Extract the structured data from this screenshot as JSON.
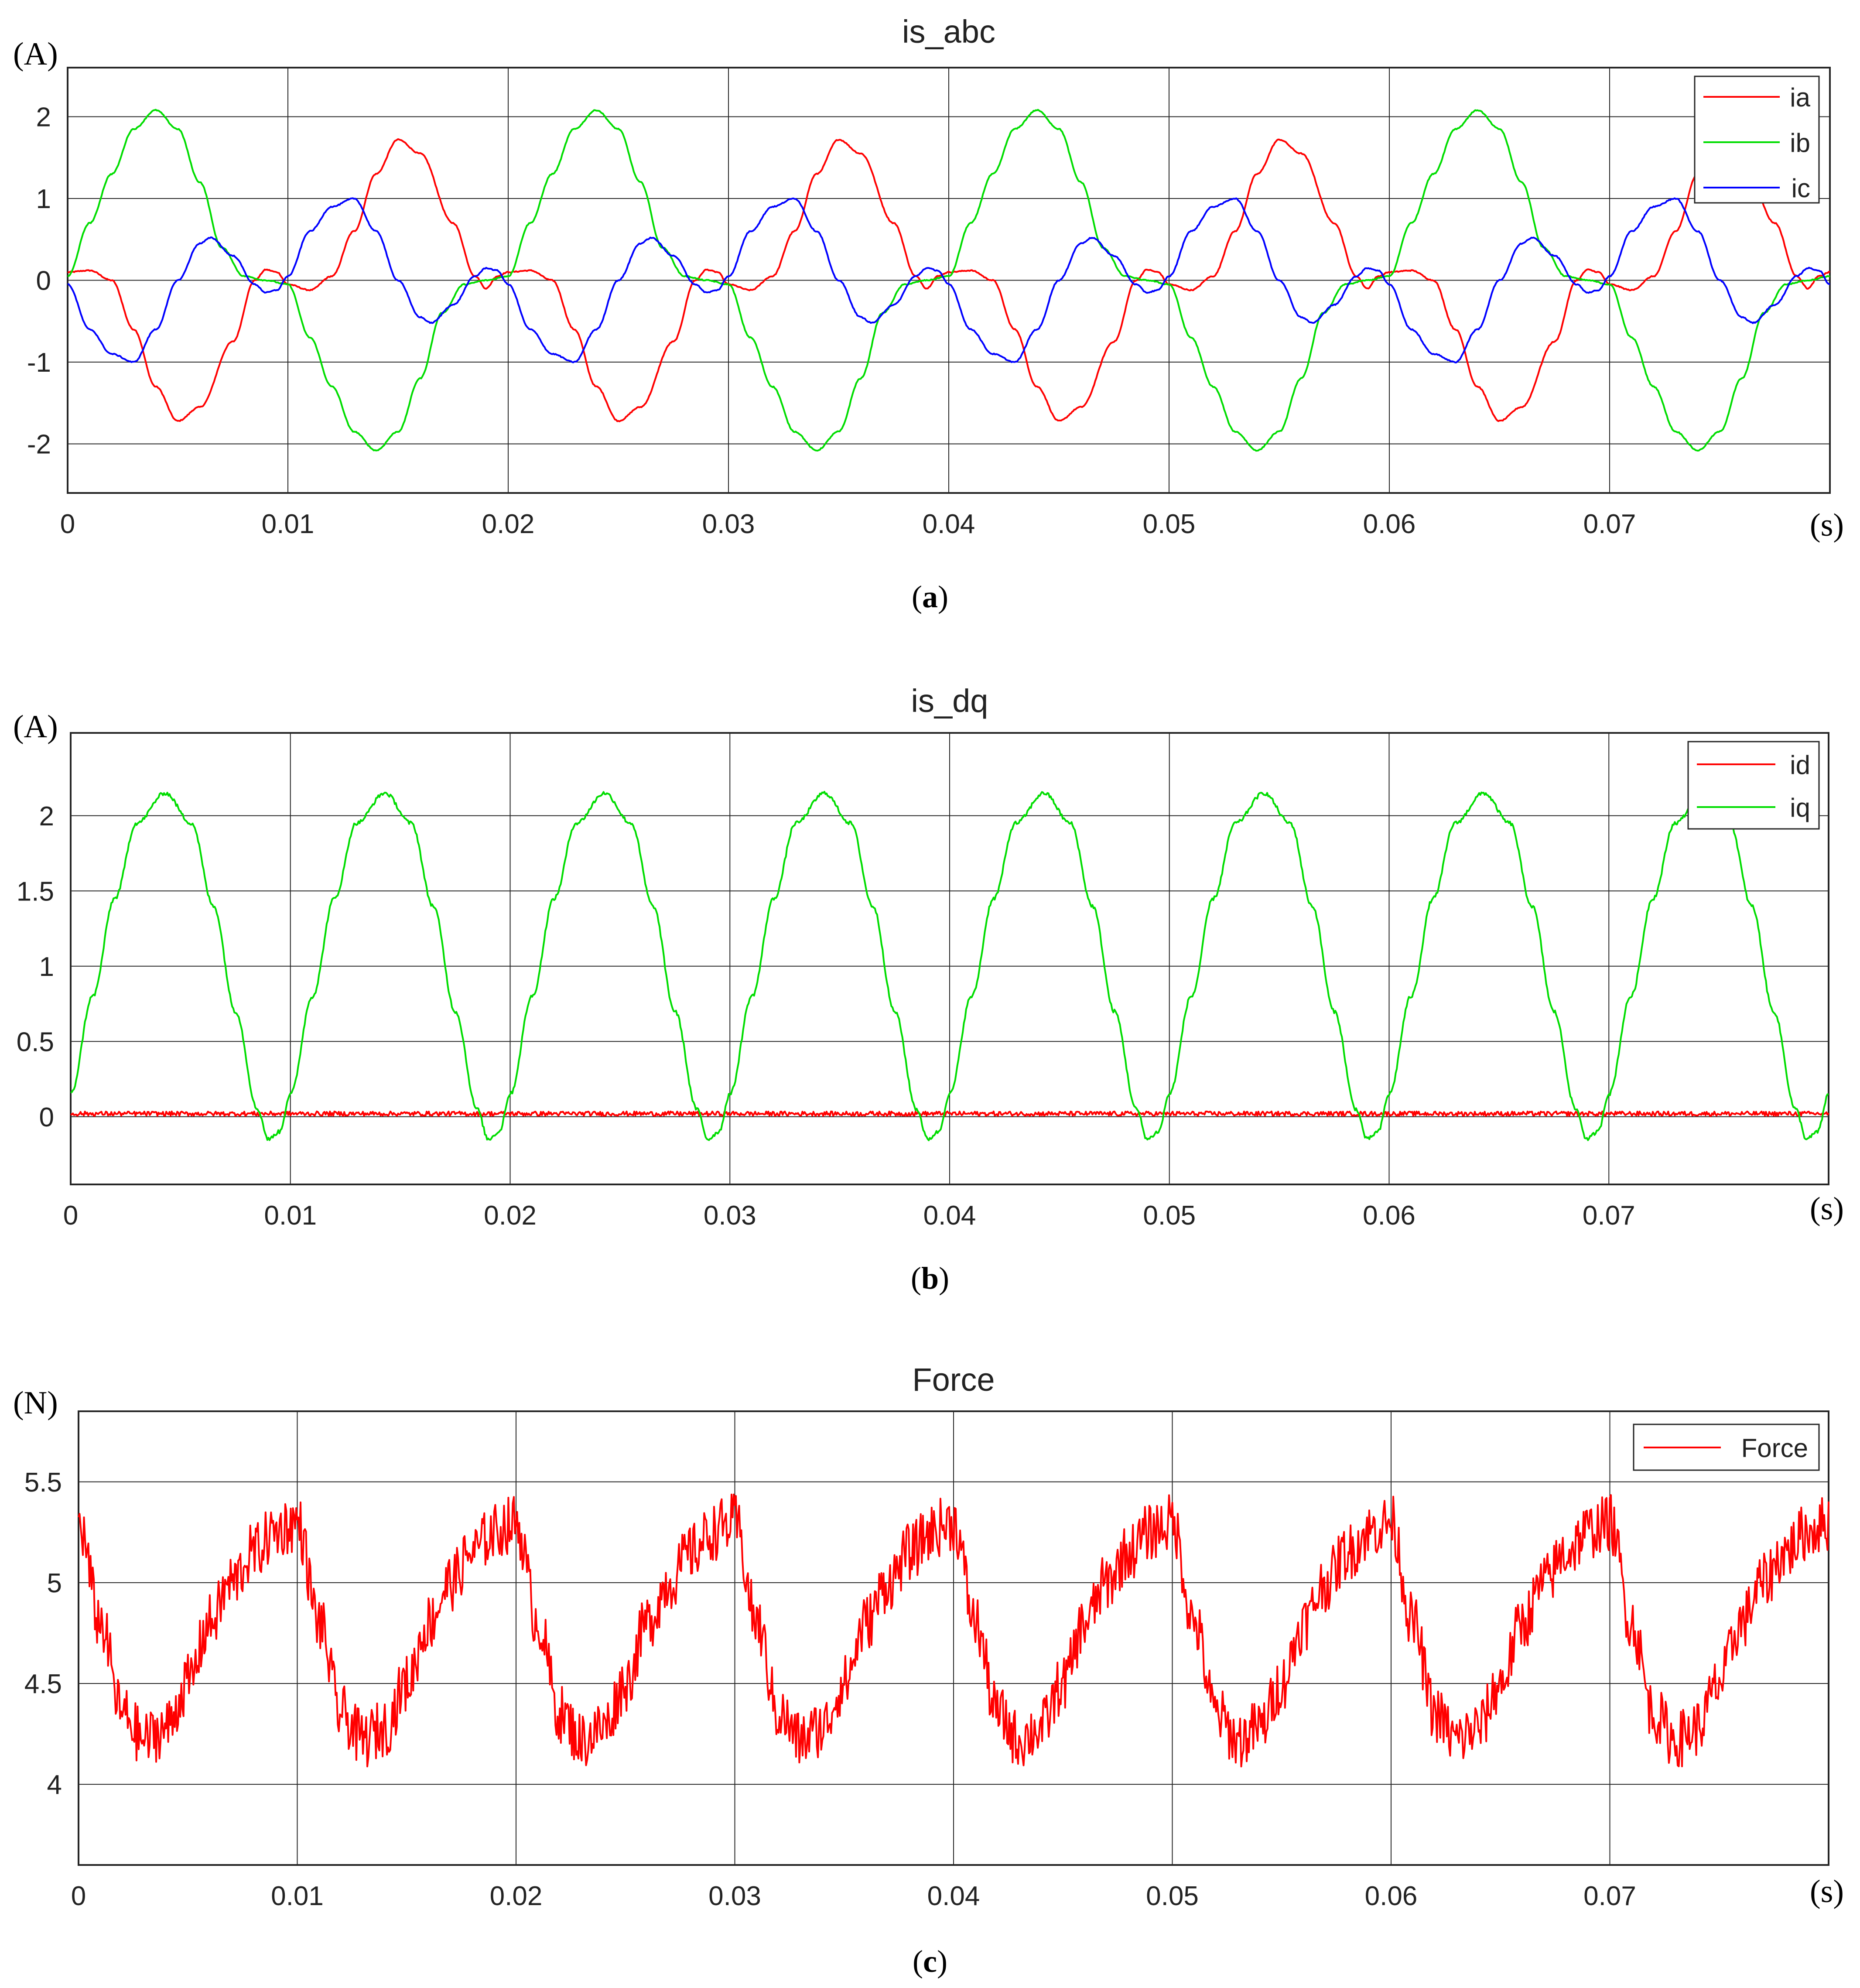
{
  "chart_data": [
    {
      "id": "a",
      "type": "line",
      "title": "is_abc",
      "y_unit": "(A)",
      "x_unit": "(s)",
      "caption_letter": "a",
      "xlim": [
        0,
        0.08
      ],
      "ylim": [
        -2.6,
        2.6
      ],
      "xticks": [
        0,
        0.01,
        0.02,
        0.03,
        0.04,
        0.05,
        0.06,
        0.07
      ],
      "xtick_labels": [
        "0",
        "0.01",
        "0.02",
        "0.03",
        "0.04",
        "0.05",
        "0.06",
        "0.07"
      ],
      "yticks": [
        -2,
        -1,
        0,
        1,
        2
      ],
      "ytick_labels": [
        "-2",
        "-1",
        "0",
        "1",
        "2"
      ],
      "grid": true,
      "legend_position": "top-right",
      "period": 0.02,
      "series": [
        {
          "name": "ia",
          "color": "#ff0000",
          "waveform": [
            [
              0,
              0.1
            ],
            [
              0.001,
              0.12
            ],
            [
              0.002,
              0.0
            ],
            [
              0.003,
              -0.6
            ],
            [
              0.004,
              -1.3
            ],
            [
              0.005,
              -1.72
            ],
            [
              0.006,
              -1.55
            ],
            [
              0.0075,
              -0.75
            ],
            [
              0.0085,
              0.0
            ],
            [
              0.009,
              0.13
            ],
            [
              0.0095,
              0.1
            ],
            [
              0.01,
              -0.05
            ],
            [
              0.011,
              -0.12
            ],
            [
              0.012,
              0.05
            ],
            [
              0.013,
              0.6
            ],
            [
              0.014,
              1.3
            ],
            [
              0.015,
              1.72
            ],
            [
              0.016,
              1.55
            ],
            [
              0.0175,
              0.7
            ],
            [
              0.0185,
              0.05
            ],
            [
              0.019,
              -0.1
            ],
            [
              0.0195,
              0.05
            ],
            [
              0.02,
              0.1
            ]
          ]
        },
        {
          "name": "ib",
          "color": "#00dd00",
          "waveform": [
            [
              0,
              0.05
            ],
            [
              0.001,
              0.7
            ],
            [
              0.002,
              1.3
            ],
            [
              0.003,
              1.85
            ],
            [
              0.004,
              2.08
            ],
            [
              0.005,
              1.85
            ],
            [
              0.006,
              1.2
            ],
            [
              0.007,
              0.4
            ],
            [
              0.008,
              0.05
            ],
            [
              0.009,
              0.0
            ],
            [
              0.01,
              -0.05
            ],
            [
              0.011,
              -0.7
            ],
            [
              0.012,
              -1.3
            ],
            [
              0.013,
              -1.85
            ],
            [
              0.014,
              -2.08
            ],
            [
              0.015,
              -1.85
            ],
            [
              0.016,
              -1.2
            ],
            [
              0.017,
              -0.4
            ],
            [
              0.018,
              -0.05
            ],
            [
              0.019,
              0.0
            ],
            [
              0.02,
              0.05
            ]
          ]
        },
        {
          "name": "ic",
          "color": "#0000ff",
          "waveform": [
            [
              0,
              -0.05
            ],
            [
              0.001,
              -0.6
            ],
            [
              0.002,
              -0.9
            ],
            [
              0.003,
              -1.0
            ],
            [
              0.004,
              -0.6
            ],
            [
              0.005,
              0.0
            ],
            [
              0.006,
              0.45
            ],
            [
              0.0065,
              0.52
            ],
            [
              0.0075,
              0.3
            ],
            [
              0.0085,
              -0.05
            ],
            [
              0.009,
              -0.15
            ],
            [
              0.0095,
              -0.12
            ],
            [
              0.01,
              0.05
            ],
            [
              0.011,
              0.6
            ],
            [
              0.012,
              0.9
            ],
            [
              0.013,
              1.0
            ],
            [
              0.014,
              0.6
            ],
            [
              0.015,
              0.0
            ],
            [
              0.016,
              -0.45
            ],
            [
              0.0165,
              -0.52
            ],
            [
              0.0175,
              -0.3
            ],
            [
              0.0185,
              0.05
            ],
            [
              0.019,
              0.15
            ],
            [
              0.0195,
              0.12
            ],
            [
              0.02,
              -0.05
            ]
          ]
        }
      ]
    },
    {
      "id": "b",
      "type": "line",
      "title": "is_dq",
      "y_unit": "(A)",
      "x_unit": "(s)",
      "caption_letter": "b",
      "xlim": [
        0,
        0.08
      ],
      "ylim": [
        -0.45,
        2.55
      ],
      "xticks": [
        0,
        0.01,
        0.02,
        0.03,
        0.04,
        0.05,
        0.06,
        0.07
      ],
      "xtick_labels": [
        "0",
        "0.01",
        "0.02",
        "0.03",
        "0.04",
        "0.05",
        "0.06",
        "0.07"
      ],
      "yticks": [
        0,
        0.5,
        1,
        1.5,
        2
      ],
      "ytick_labels": [
        "0",
        "0.5",
        "1",
        "1.5",
        "2"
      ],
      "grid": true,
      "legend_position": "top-right",
      "period": 0.01,
      "series": [
        {
          "name": "id",
          "color": "#ff0000",
          "waveform": [
            [
              0,
              0.02
            ],
            [
              0.01,
              0.02
            ]
          ]
        },
        {
          "name": "iq",
          "color": "#00dd00",
          "waveform": [
            [
              0,
              0.15
            ],
            [
              0.001,
              0.8
            ],
            [
              0.002,
              1.45
            ],
            [
              0.003,
              1.95
            ],
            [
              0.0043,
              2.15
            ],
            [
              0.0055,
              1.95
            ],
            [
              0.0065,
              1.4
            ],
            [
              0.0075,
              0.7
            ],
            [
              0.0085,
              0.05
            ],
            [
              0.009,
              -0.15
            ],
            [
              0.0095,
              -0.1
            ],
            [
              0.01,
              0.15
            ]
          ]
        }
      ]
    },
    {
      "id": "c",
      "type": "line",
      "title": "Force",
      "y_unit": "(N)",
      "x_unit": "(s)",
      "caption_letter": "c",
      "xlim": [
        0,
        0.08
      ],
      "ylim": [
        3.6,
        5.85
      ],
      "xticks": [
        0,
        0.01,
        0.02,
        0.03,
        0.04,
        0.05,
        0.06,
        0.07
      ],
      "xtick_labels": [
        "0",
        "0.01",
        "0.02",
        "0.03",
        "0.04",
        "0.05",
        "0.06",
        "0.07"
      ],
      "yticks": [
        4,
        4.5,
        5,
        5.5
      ],
      "ytick_labels": [
        "4",
        "4.5",
        "5",
        "5.5"
      ],
      "grid": true,
      "legend_position": "top-right",
      "period": 0.01,
      "series": [
        {
          "name": "Force",
          "color": "#ff0000",
          "waveform": [
            [
              0,
              5.3
            ],
            [
              0.001,
              4.8
            ],
            [
              0.002,
              4.35
            ],
            [
              0.003,
              4.22
            ],
            [
              0.004,
              4.28
            ],
            [
              0.005,
              4.5
            ],
            [
              0.006,
              4.8
            ],
            [
              0.007,
              5.0
            ],
            [
              0.008,
              5.15
            ],
            [
              0.009,
              5.25
            ],
            [
              0.0095,
              5.28
            ],
            [
              0.01,
              5.3
            ]
          ]
        }
      ]
    }
  ]
}
